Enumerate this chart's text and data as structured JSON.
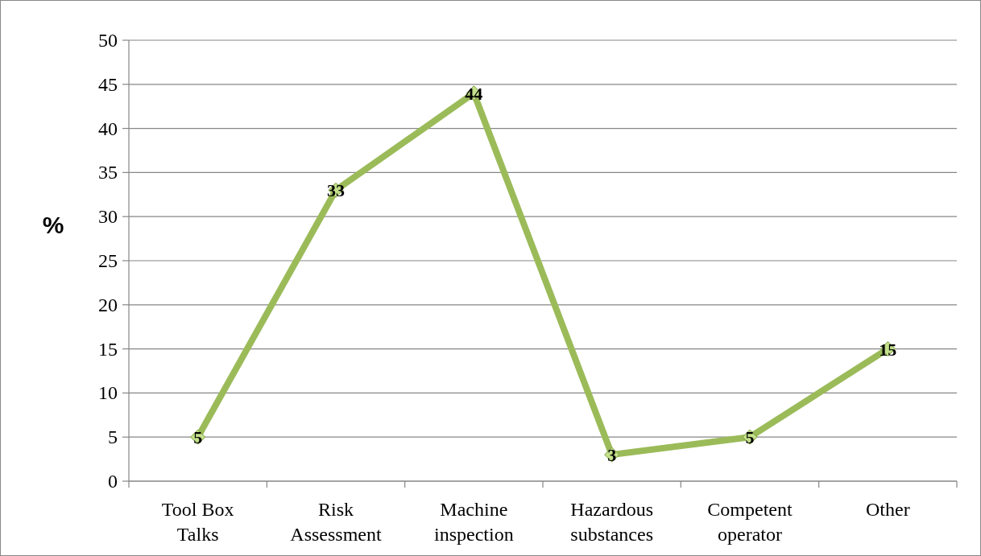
{
  "chart_data": {
    "type": "line",
    "ylabel": "%",
    "categories": [
      "Tool Box Talks",
      "Risk Assessment",
      "Machine inspection",
      "Hazardous substances",
      "Competent operator",
      "Other"
    ],
    "series": [
      {
        "color": "#9bbb59",
        "values": [
          5,
          33,
          44,
          3,
          5,
          15
        ]
      }
    ],
    "ylim": [
      0,
      50
    ],
    "yticks": [
      0,
      5,
      10,
      15,
      20,
      25,
      30,
      35,
      40,
      45,
      50
    ],
    "grid": "y",
    "marker": "diamond",
    "line_style": "solid",
    "data_labels": true
  }
}
